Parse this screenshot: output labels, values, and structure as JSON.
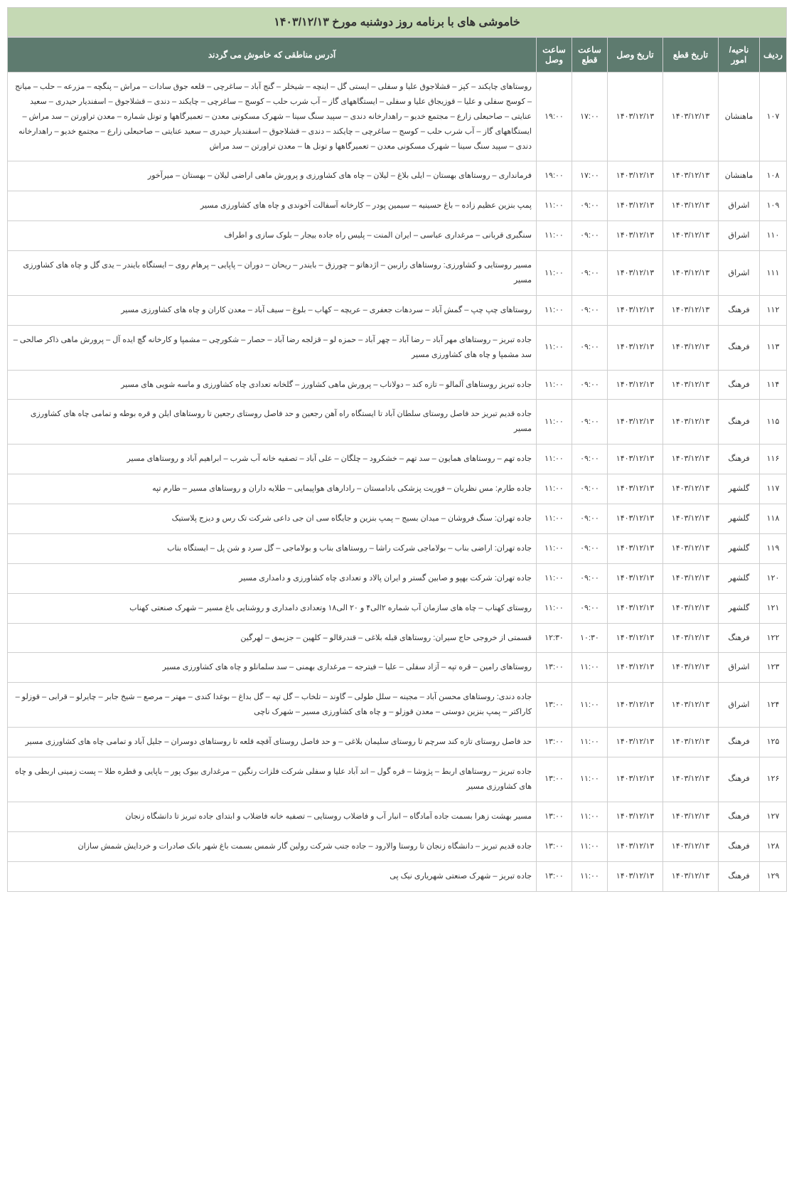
{
  "title": "خاموشی های با برنامه روز  دوشنبه مورخ ۱۴۰۳/۱۲/۱۳",
  "columns": {
    "row": "ردیف",
    "region": "ناحیه/امور",
    "cut_date": "تاریخ قطع",
    "conn_date": "تاریخ وصل",
    "cut_time": "ساعت قطع",
    "conn_time": "ساعت وصل",
    "address": "آدرس مناطقی که خاموش می گردند"
  },
  "rows": [
    {
      "row": "۱۰۷",
      "region": "ماهنشان",
      "cut_date": "۱۴۰۳/۱۲/۱۳",
      "conn_date": "۱۴۰۳/۱۲/۱۳",
      "cut_time": "۱۷:۰۰",
      "conn_time": "۱۹:۰۰",
      "address": "روستاهای چایکند – کپز – قشلاجوق علیا و سفلی – ایستی گل – اینچه – شیخلر – گنج آباد – ساغرچی – قلعه جوق سادات – مراش – پنگچه – مزرعه – حلب – میانج – کوسج سفلی و علیا – قوزیجاق علیا و سفلی – ایستگاههای گاز – آب شرب حلب – کوسج – ساغرچی – چایکند – دندی – قشلاجوق – اسفندیار حیدری – سعید عنایتی – صاحبعلی زارع – مجتمع خدیو – راهدارخانه دندی – سپید سنگ سینا – شهرک مسکونی معدن – تعمیرگاهها و تونل شماره – معدن تراورتن – سد مراش – ایستگاههای گاز – آب شرب حلب – کوسج – ساغرچی – چایکند – دندی – قشلاجوق – اسفندیار حیدری – سعید عنایتی – صاحبعلی زارع – مجتمع خدیو – راهدارخانه دندی – سپید سنگ سینا – شهرک مسکونی معدن – تعمیرگاهها و تونل ها – معدن تراورتن – سد مراش"
    },
    {
      "row": "۱۰۸",
      "region": "ماهنشان",
      "cut_date": "۱۴۰۳/۱۲/۱۳",
      "conn_date": "۱۴۰۳/۱۲/۱۳",
      "cut_time": "۱۷:۰۰",
      "conn_time": "۱۹:۰۰",
      "address": "فرمانداری – روستاهای بهستان – ایلی بلاغ – لیلان – چاه های کشاورزی و پرورش ماهی اراضی لیلان – بهستان – میرآخور"
    },
    {
      "row": "۱۰۹",
      "region": "اشراق",
      "cut_date": "۱۴۰۳/۱۲/۱۳",
      "conn_date": "۱۴۰۳/۱۲/۱۳",
      "cut_time": "۰۹:۰۰",
      "conn_time": "۱۱:۰۰",
      "address": "پمپ بنزین عظیم زاده – باغ حسینیه – سیمین پودر – کارخانه آسفالت آخوندی و چاه های کشاورزی مسیر"
    },
    {
      "row": "۱۱۰",
      "region": "اشراق",
      "cut_date": "۱۴۰۳/۱۲/۱۳",
      "conn_date": "۱۴۰۳/۱۲/۱۳",
      "cut_time": "۰۹:۰۰",
      "conn_time": "۱۱:۰۰",
      "address": "سنگبری قربانی – مرغداری عباسی – ایران المنت – پلیس راه جاده بیجار – بلوک سازی و اطراف"
    },
    {
      "row": "۱۱۱",
      "region": "اشراق",
      "cut_date": "۱۴۰۳/۱۲/۱۳",
      "conn_date": "۱۴۰۳/۱۲/۱۳",
      "cut_time": "۰۹:۰۰",
      "conn_time": "۱۱:۰۰",
      "address": "مسیر روستایی و کشاورزی: روستاهای رازبین – اژدهاتو – چورزق – بایندر – ریحان – دوران – پاپایی – پرهام روی – ایستگاه بایندر – یدی گل و چاه های کشاورزی مسیر"
    },
    {
      "row": "۱۱۲",
      "region": "فرهنگ",
      "cut_date": "۱۴۰۳/۱۲/۱۳",
      "conn_date": "۱۴۰۳/۱۲/۱۳",
      "cut_time": "۰۹:۰۰",
      "conn_time": "۱۱:۰۰",
      "address": "روستاهای چپ چپ – گمش آباد – سردهات جعفری – عریچه – کهاب – بلوغ – سیف آباد – معدن کاران و چاه های کشاورزی مسیر"
    },
    {
      "row": "۱۱۳",
      "region": "فرهنگ",
      "cut_date": "۱۴۰۳/۱۲/۱۳",
      "conn_date": "۱۴۰۳/۱۲/۱۳",
      "cut_time": "۰۹:۰۰",
      "conn_time": "۱۱:۰۰",
      "address": "جاده تبریز – روستاهای مهر آباد – رضا آباد – چهر آباد – حمزه لو – قزلجه رضا آباد – حصار – شکورچی – مشمپا  و کارخانه گچ ایده آل – پرورش ماهی ذاکر صالحی – سد مشمپا و چاه های کشاورزی مسیر"
    },
    {
      "row": "۱۱۴",
      "region": "فرهنگ",
      "cut_date": "۱۴۰۳/۱۲/۱۳",
      "conn_date": "۱۴۰۳/۱۲/۱۳",
      "cut_time": "۰۹:۰۰",
      "conn_time": "۱۱:۰۰",
      "address": "جاده تبریز روستاهای آلمالو – تازه کند – دولاناب – پرورش ماهی کشاورز – گلخانه تعدادی چاه کشاورزی و ماسه شویی های مسیر"
    },
    {
      "row": "۱۱۵",
      "region": "فرهنگ",
      "cut_date": "۱۴۰۳/۱۲/۱۳",
      "conn_date": "۱۴۰۳/۱۲/۱۳",
      "cut_time": "۰۹:۰۰",
      "conn_time": "۱۱:۰۰",
      "address": "جاده قدیم تبریز حد فاصل روستای سلطان آباد تا ایستگاه راه آهن رجعین و حد فاصل روستای رجعین تا روستاهای ایلن و قره بوطه و تمامی چاه های کشاورزی مسیر"
    },
    {
      "row": "۱۱۶",
      "region": "فرهنگ",
      "cut_date": "۱۴۰۳/۱۲/۱۳",
      "conn_date": "۱۴۰۳/۱۲/۱۳",
      "cut_time": "۰۹:۰۰",
      "conn_time": "۱۱:۰۰",
      "address": "جاده تهم – روستاهای همایون – سد تهم – خشکرود – چلگان – علی آباد – تصفیه خانه آب شرب – ابراهیم آباد و روستاهای مسیر"
    },
    {
      "row": "۱۱۷",
      "region": "گلشهر",
      "cut_date": "۱۴۰۳/۱۲/۱۳",
      "conn_date": "۱۴۰۳/۱۲/۱۳",
      "cut_time": "۰۹:۰۰",
      "conn_time": "۱۱:۰۰",
      "address": "جاده طارم: مس نظریان – فوریت پزشکی بادامستان – رادارهای هواپیمایی – طلایه داران و روستاهای مسیر – طارم تپه"
    },
    {
      "row": "۱۱۸",
      "region": "گلشهر",
      "cut_date": "۱۴۰۳/۱۲/۱۳",
      "conn_date": "۱۴۰۳/۱۲/۱۳",
      "cut_time": "۰۹:۰۰",
      "conn_time": "۱۱:۰۰",
      "address": "جاده تهران: سنگ فروشان – میدان بسیج – پمپ بنزین و جایگاه سی ان جی داعی شرکت تک رس و دیزج پلاستیک"
    },
    {
      "row": "۱۱۹",
      "region": "گلشهر",
      "cut_date": "۱۴۰۳/۱۲/۱۳",
      "conn_date": "۱۴۰۳/۱۲/۱۳",
      "cut_time": "۰۹:۰۰",
      "conn_time": "۱۱:۰۰",
      "address": "جاده تهران: اراضی بناب – بولاماجی شرکت راشا – روستاهای بناب و بولاماجی – گل سرد و شن پل – ایستگاه بناب"
    },
    {
      "row": "۱۲۰",
      "region": "گلشهر",
      "cut_date": "۱۴۰۳/۱۲/۱۳",
      "conn_date": "۱۴۰۳/۱۲/۱۳",
      "cut_time": "۰۹:۰۰",
      "conn_time": "۱۱:۰۰",
      "address": "جاده تهران: شرکت بهپو و صابین گستر و ایران پالاد و تعدادی چاه کشاورزی و دامداری مسیر"
    },
    {
      "row": "۱۲۱",
      "region": "گلشهر",
      "cut_date": "۱۴۰۳/۱۲/۱۳",
      "conn_date": "۱۴۰۳/۱۲/۱۳",
      "cut_time": "۰۹:۰۰",
      "conn_time": "۱۱:۰۰",
      "address": "روستای کهناب – چاه های سازمان آب شماره ۲الی۴ و ۲۰ الی۱۸ وتعدادی دامداری و روشنایی باغ مسیر – شهرک صنعتی کهناب"
    },
    {
      "row": "۱۲۲",
      "region": "فرهنگ",
      "cut_date": "۱۴۰۳/۱۲/۱۳",
      "conn_date": "۱۴۰۳/۱۲/۱۳",
      "cut_time": "۱۰:۳۰",
      "conn_time": "۱۲:۳۰",
      "address": "قسمتی از خروجی حاج سیران: روستاهای قبله بلاغی – قندرقالو – کلهین – جزیمق – لهرگین"
    },
    {
      "row": "۱۲۳",
      "region": "اشراق",
      "cut_date": "۱۴۰۳/۱۲/۱۳",
      "conn_date": "۱۴۰۳/۱۲/۱۳",
      "cut_time": "۱۱:۰۰",
      "conn_time": "۱۳:۰۰",
      "address": "روستاهای رامین – قره تپه – آزاد سفلی – علیا – فیترجه – مرغداری بهمنی – سد سلمانلو و چاه های کشاورزی مسیر"
    },
    {
      "row": "۱۲۴",
      "region": "اشراق",
      "cut_date": "۱۴۰۳/۱۲/۱۳",
      "conn_date": "۱۴۰۳/۱۲/۱۳",
      "cut_time": "۱۱:۰۰",
      "conn_time": "۱۳:۰۰",
      "address": "جاده دندی: روستاهای محسن آباد – مجینه – سلل طولی – گاوند – تلخاب – گل تپه – گل بداغ – بوغدا کندی – مهتر – مرصع – شیخ جابر – چایرلو – قرابی – قوزلو – کاراکتر – پمپ بنزین دوستی – معدن قوزلو – و چاه های کشاورزی مسیر – شهرک ناچی"
    },
    {
      "row": "۱۲۵",
      "region": "فرهنگ",
      "cut_date": "۱۴۰۳/۱۲/۱۳",
      "conn_date": "۱۴۰۳/۱۲/۱۳",
      "cut_time": "۱۱:۰۰",
      "conn_time": "۱۳:۰۰",
      "address": "حد فاصل روستای تازه کند سرچم تا روستای سلیمان بلاغی – و حد فاصل روستای آقچه قلعه تا روستاهای دوسران – جلیل آباد و تمامی چاه های کشاورزی مسیر"
    },
    {
      "row": "۱۲۶",
      "region": "فرهنگ",
      "cut_date": "۱۴۰۳/۱۲/۱۳",
      "conn_date": "۱۴۰۳/۱۲/۱۳",
      "cut_time": "۱۱:۰۰",
      "conn_time": "۱۳:۰۰",
      "address": "جاده تبریز – روستاهای اربط – پژوشا – قره گول – اند آباد علیا و سفلی  شرکت فلزات رنگین – مرغداری بیوک پور – باپایی و قطره طلا – پست زمینی اربطی و چاه های کشاورزی مسیر"
    },
    {
      "row": "۱۲۷",
      "region": "فرهنگ",
      "cut_date": "۱۴۰۳/۱۲/۱۳",
      "conn_date": "۱۴۰۳/۱۲/۱۳",
      "cut_time": "۱۱:۰۰",
      "conn_time": "۱۳:۰۰",
      "address": "مسیر بهشت زهرا بسمت جاده آمادگاه – انبار آب و فاضلاب روستایی – تصفیه خانه فاضلاب و ابتدای جاده تبریز تا دانشگاه زنجان"
    },
    {
      "row": "۱۲۸",
      "region": "فرهنگ",
      "cut_date": "۱۴۰۳/۱۲/۱۳",
      "conn_date": "۱۴۰۳/۱۲/۱۳",
      "cut_time": "۱۱:۰۰",
      "conn_time": "۱۳:۰۰",
      "address": "جاده قدیم تبریز – دانشگاه زنجان تا روستا والارود – جاده جنب شرکت رولین گار شمس بسمت باغ شهر بانک صادرات و خردایش شمش سازان"
    },
    {
      "row": "۱۲۹",
      "region": "فرهنگ",
      "cut_date": "۱۴۰۳/۱۲/۱۳",
      "conn_date": "۱۴۰۳/۱۲/۱۳",
      "cut_time": "۱۱:۰۰",
      "conn_time": "۱۳:۰۰",
      "address": "جاده تبریز – شهرک صنعتی شهریاری نیک پی"
    }
  ]
}
